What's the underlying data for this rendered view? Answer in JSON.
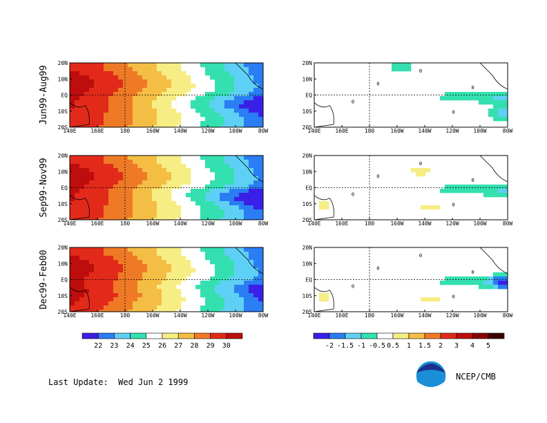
{
  "rows": [
    {
      "label": "Jun99-Aug99"
    },
    {
      "label": "Sep99-Nov99"
    },
    {
      "label": "Dec99-Feb00"
    }
  ],
  "footer": {
    "last_update_label": "Last Update:",
    "last_update_value": "Wed Jun 2 1999",
    "org": "NCEP/CMB"
  },
  "colors": {
    "logo_blue": "#1a8fd8",
    "logo_navy": "#1c2f8c"
  },
  "chart_data": [
    {
      "type": "heatmap",
      "field": "sst",
      "x_ticks": [
        "140E",
        "160E",
        "180",
        "160W",
        "140W",
        "120W",
        "100W",
        "80W"
      ],
      "y_ticks": [
        "20N",
        "10N",
        "EQ",
        "10S",
        "20S"
      ],
      "legend": {
        "labels": [
          "22",
          "23",
          "24",
          "25",
          "26",
          "27",
          "28",
          "29",
          "30"
        ],
        "colors": [
          "#3a1fe6",
          "#2a7df2",
          "#5fd0f5",
          "#34e0b0",
          "#ffffff",
          "#f6ee84",
          "#f4bd44",
          "#ef7a26",
          "#e22a1a",
          "#bd0d0d"
        ]
      }
    },
    {
      "type": "heatmap",
      "field": "anomaly",
      "x_ticks": [
        "140E",
        "160E",
        "180",
        "160W",
        "140W",
        "120W",
        "100W",
        "80W"
      ],
      "y_ticks": [
        "20N",
        "10N",
        "EQ",
        "10S",
        "20S"
      ],
      "contour_label": "0",
      "legend": {
        "labels": [
          "-2",
          "-1.5",
          "-1",
          "-0.5",
          "0.5",
          "1",
          "1.5",
          "2",
          "3",
          "4",
          "5"
        ],
        "colors": [
          "#3a1fe6",
          "#2a7df2",
          "#5fd0f5",
          "#34e0b0",
          "#ffffff",
          "#f6ee84",
          "#f4bd44",
          "#ef7a26",
          "#e22a1a",
          "#bd0d0d",
          "#8a0000",
          "#3c0000"
        ]
      }
    }
  ]
}
